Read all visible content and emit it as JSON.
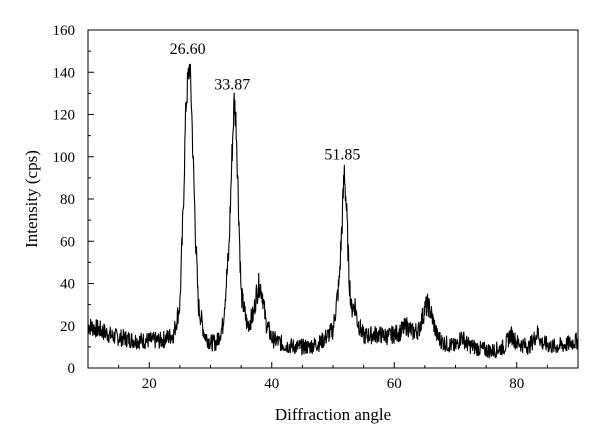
{
  "chart_data": {
    "type": "line",
    "title": "",
    "xlabel": "Diffraction angle",
    "ylabel": "Intensity (cps)",
    "xlim": [
      10,
      90
    ],
    "ylim": [
      0,
      160
    ],
    "x_ticks": [
      20,
      40,
      60,
      80
    ],
    "y_ticks": [
      0,
      20,
      40,
      60,
      80,
      100,
      120,
      140,
      160
    ],
    "grid": false,
    "legend": "none",
    "line_color": "#000000",
    "peak_annotations": [
      {
        "x": 26.6,
        "y": 144,
        "label": "26.60"
      },
      {
        "x": 33.87,
        "y": 127,
        "label": "33.87"
      },
      {
        "x": 51.85,
        "y": 94,
        "label": "51.85"
      }
    ],
    "series": [
      {
        "x": [
          10,
          12,
          14,
          16,
          18,
          20,
          22,
          24,
          25,
          25.5,
          26,
          26.3,
          26.6,
          26.9,
          27.2,
          27.6,
          28,
          29,
          30,
          31,
          32,
          33,
          33.5,
          33.87,
          34.2,
          34.6,
          35,
          36,
          37,
          37.5,
          38,
          38.5,
          39,
          40,
          42,
          44,
          46,
          48,
          50,
          51,
          51.5,
          51.85,
          52.2,
          52.6,
          53,
          53.6,
          54,
          55,
          57,
          59,
          61,
          62,
          63,
          64,
          65,
          65.5,
          66,
          67,
          68,
          70,
          71,
          72,
          74,
          76,
          78,
          79,
          80,
          82,
          83.5,
          84,
          86,
          88,
          90
        ],
        "y": [
          20,
          18,
          15,
          14,
          13,
          13,
          13,
          16,
          30,
          70,
          125,
          135,
          144,
          125,
          95,
          60,
          30,
          16,
          12,
          12,
          20,
          55,
          100,
          127,
          115,
          75,
          35,
          20,
          25,
          35,
          40,
          35,
          22,
          14,
          11,
          10,
          10,
          12,
          18,
          40,
          70,
          94,
          75,
          45,
          28,
          30,
          22,
          15,
          16,
          15,
          17,
          20,
          17,
          18,
          28,
          30,
          26,
          15,
          12,
          10,
          15,
          11,
          9,
          8,
          10,
          16,
          12,
          10,
          17,
          12,
          10,
          11,
          13
        ]
      }
    ]
  }
}
